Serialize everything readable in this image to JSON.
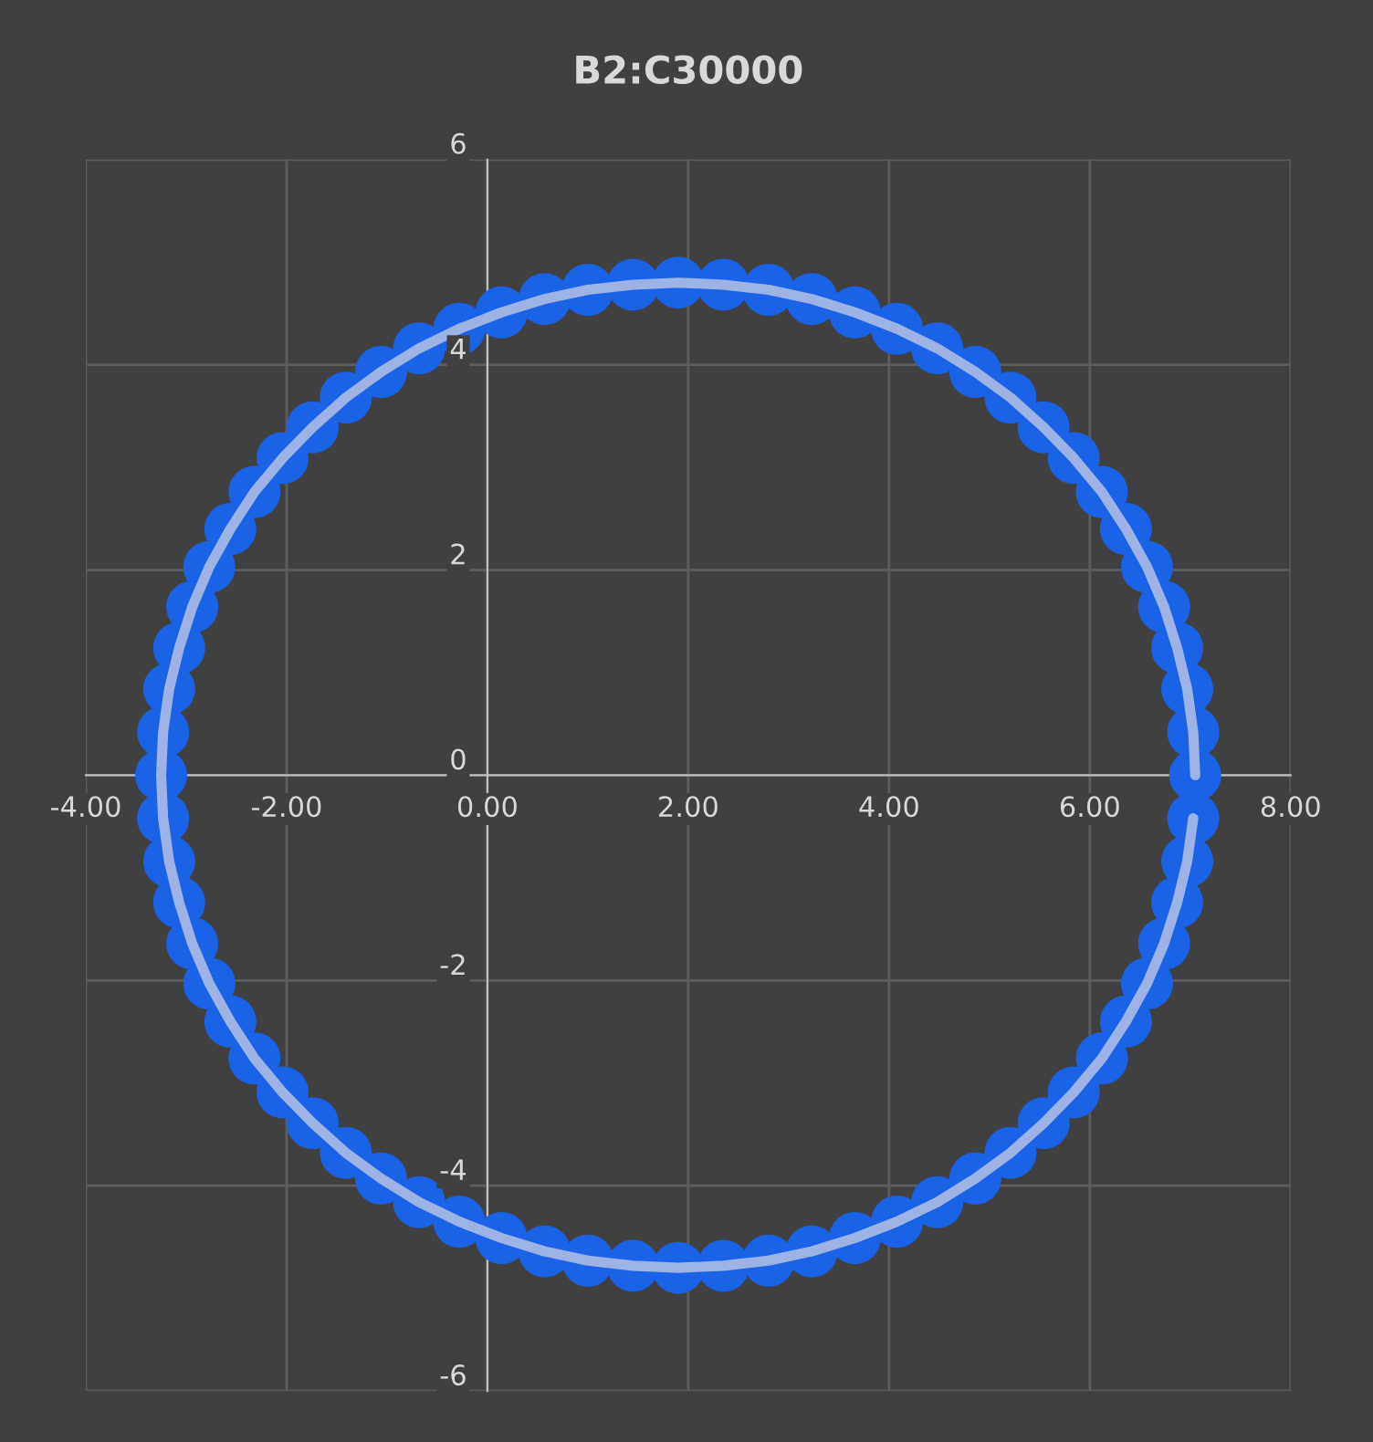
{
  "chart_data": {
    "type": "scatter",
    "title": "B2:C30000",
    "x": [
      7.05,
      7.03,
      6.97,
      6.87,
      6.74,
      6.57,
      6.36,
      6.12,
      5.84,
      5.54,
      5.21,
      4.86,
      4.48,
      4.08,
      3.66,
      3.23,
      2.8,
      2.35,
      1.9,
      1.45,
      1.0,
      0.57,
      0.14,
      -0.28,
      -0.68,
      -1.06,
      -1.41,
      -1.74,
      -2.04,
      -2.32,
      -2.56,
      -2.77,
      -2.94,
      -3.07,
      -3.17,
      -3.23,
      -3.25,
      -3.23,
      -3.17,
      -3.07,
      -2.94,
      -2.77,
      -2.56,
      -2.32,
      -2.04,
      -1.74,
      -1.41,
      -1.06,
      -0.68,
      -0.28,
      0.14,
      0.57,
      1.0,
      1.45,
      1.9,
      2.35,
      2.8,
      3.23,
      3.66,
      4.08,
      4.48,
      4.86,
      5.21,
      5.54,
      5.84,
      6.12,
      6.36,
      6.57,
      6.74,
      6.87,
      6.97,
      7.03
    ],
    "series": [
      {
        "color": "#1a62e6",
        "values": [
          0,
          0.42,
          0.84,
          1.24,
          1.64,
          2.03,
          2.4,
          2.76,
          3.09,
          3.39,
          3.68,
          3.93,
          4.16,
          4.35,
          4.51,
          4.64,
          4.73,
          4.78,
          4.8,
          4.78,
          4.73,
          4.64,
          4.51,
          4.35,
          4.16,
          3.93,
          3.68,
          3.39,
          3.09,
          2.76,
          2.4,
          2.03,
          1.64,
          1.24,
          0.84,
          0.42,
          0,
          -0.42,
          -0.84,
          -1.24,
          -1.64,
          -2.03,
          -2.4,
          -2.76,
          -3.09,
          -3.39,
          -3.68,
          -3.93,
          -4.16,
          -4.35,
          -4.51,
          -4.64,
          -4.73,
          -4.78,
          -4.8,
          -4.78,
          -4.73,
          -4.64,
          -4.51,
          -4.35,
          -4.16,
          -3.93,
          -3.68,
          -3.39,
          -3.09,
          -2.76,
          -2.4,
          -2.03,
          -1.64,
          -1.24,
          -0.84,
          -0.42
        ]
      },
      {
        "type": "line",
        "marker": "none",
        "color": "#9db3e6",
        "values": [
          0,
          0.42,
          0.84,
          1.24,
          1.64,
          2.03,
          2.4,
          2.76,
          3.09,
          3.39,
          3.68,
          3.93,
          4.16,
          4.35,
          4.51,
          4.64,
          4.73,
          4.78,
          4.8,
          4.78,
          4.73,
          4.64,
          4.51,
          4.35,
          4.16,
          3.93,
          3.68,
          3.39,
          3.09,
          2.76,
          2.4,
          2.03,
          1.64,
          1.24,
          0.84,
          0.42,
          0,
          -0.42,
          -0.84,
          -1.24,
          -1.64,
          -2.03,
          -2.4,
          -2.76,
          -3.09,
          -3.39,
          -3.68,
          -3.93,
          -4.16,
          -4.35,
          -4.51,
          -4.64,
          -4.73,
          -4.78,
          -4.8,
          -4.78,
          -4.73,
          -4.64,
          -4.51,
          -4.35,
          -4.16,
          -3.93,
          -3.68,
          -3.39,
          -3.09,
          -2.76,
          -2.4,
          -2.03,
          -1.64,
          -1.24,
          -0.84,
          -0.42
        ]
      }
    ],
    "xlim": [
      -4,
      8
    ],
    "ylim": [
      -6,
      6
    ],
    "xticks": [
      {
        "value": -4,
        "label": "-4.00"
      },
      {
        "value": -2,
        "label": "-2.00"
      },
      {
        "value": 0,
        "label": "0.00"
      },
      {
        "value": 2,
        "label": "2.00"
      },
      {
        "value": 4,
        "label": "4.00"
      },
      {
        "value": 6,
        "label": "6.00"
      },
      {
        "value": 8,
        "label": "8.00"
      }
    ],
    "yticks": [
      -6,
      -4,
      -2,
      0,
      2,
      4,
      6
    ],
    "grid": true,
    "marker": "circle",
    "line_style": "solid"
  }
}
